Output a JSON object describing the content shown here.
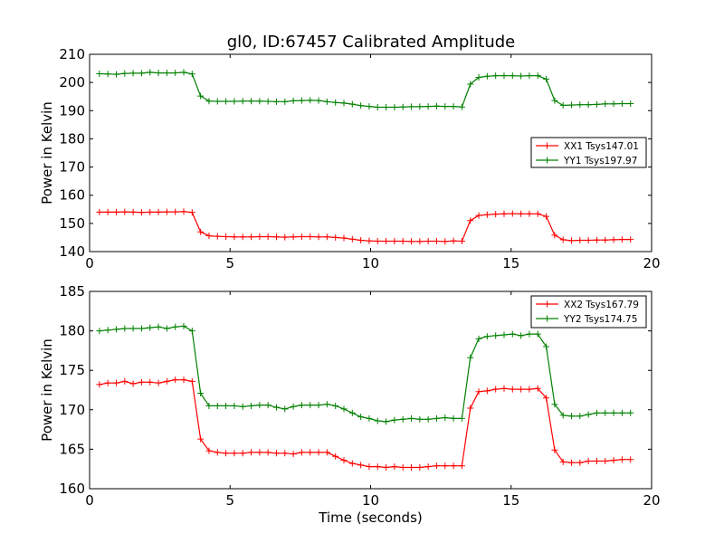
{
  "figure_title": "gl0, ID:67457 Calibrated Amplitude",
  "colors": {
    "red": "#ff0000",
    "green": "#008000",
    "axis": "#000000"
  },
  "chart_data": [
    {
      "type": "line",
      "title": "gl0, ID:67457 Calibrated Amplitude",
      "xlabel": "",
      "ylabel": "Power in Kelvin",
      "xlim": [
        0,
        20
      ],
      "ylim": [
        140,
        210
      ],
      "xticks": [
        0,
        5,
        10,
        15,
        20
      ],
      "yticks": [
        140,
        150,
        160,
        170,
        180,
        190,
        200,
        210
      ],
      "legend_position": "center-right",
      "x": [
        0.35,
        0.65,
        0.95,
        1.25,
        1.55,
        1.85,
        2.15,
        2.45,
        2.75,
        3.05,
        3.35,
        3.65,
        3.95,
        4.25,
        4.55,
        4.85,
        5.15,
        5.45,
        5.75,
        6.05,
        6.35,
        6.65,
        6.95,
        7.25,
        7.55,
        7.85,
        8.15,
        8.45,
        8.75,
        9.05,
        9.35,
        9.65,
        9.95,
        10.25,
        10.55,
        10.85,
        11.15,
        11.45,
        11.75,
        12.05,
        12.35,
        12.65,
        12.95,
        13.25,
        13.55,
        13.85,
        14.15,
        14.45,
        14.75,
        15.05,
        15.35,
        15.65,
        15.95,
        16.25,
        16.55,
        16.85,
        17.15,
        17.45,
        17.75,
        18.05,
        18.35,
        18.65,
        18.95,
        19.25
      ],
      "series": [
        {
          "name": "XX1 Tsys147.01",
          "color": "#ff0000",
          "values": [
            154,
            154,
            154,
            154.1,
            154,
            153.9,
            154,
            154,
            154.1,
            154.1,
            154.2,
            153.9,
            147,
            145.6,
            145.4,
            145.3,
            145.2,
            145.2,
            145.2,
            145.3,
            145.3,
            145.2,
            145.1,
            145.2,
            145.3,
            145.3,
            145.2,
            145.2,
            145,
            144.8,
            144.4,
            144,
            143.8,
            143.7,
            143.7,
            143.7,
            143.7,
            143.6,
            143.6,
            143.7,
            143.7,
            143.6,
            143.8,
            143.7,
            151,
            152.8,
            153.1,
            153.3,
            153.4,
            153.5,
            153.4,
            153.4,
            153.4,
            152.5,
            145.8,
            144.2,
            143.9,
            144,
            144,
            144.1,
            144.1,
            144.2,
            144.3,
            144.3
          ]
        },
        {
          "name": "YY1 Tsys197.97",
          "color": "#008000",
          "values": [
            203.1,
            203,
            202.9,
            203.2,
            203.3,
            203.3,
            203.6,
            203.4,
            203.4,
            203.4,
            203.6,
            203,
            195.2,
            193.4,
            193.3,
            193.3,
            193.3,
            193.4,
            193.4,
            193.4,
            193.3,
            193.2,
            193.2,
            193.5,
            193.6,
            193.7,
            193.6,
            193.2,
            192.9,
            192.7,
            192.3,
            191.8,
            191.5,
            191.2,
            191.2,
            191.2,
            191.3,
            191.4,
            191.4,
            191.5,
            191.6,
            191.5,
            191.5,
            191.3,
            199.4,
            201.8,
            202.2,
            202.4,
            202.4,
            202.4,
            202.3,
            202.4,
            202.4,
            201.2,
            193.6,
            191.9,
            192,
            192.1,
            192.1,
            192.2,
            192.4,
            192.4,
            192.5,
            192.5
          ]
        }
      ]
    },
    {
      "type": "line",
      "title": "",
      "xlabel": "Time (seconds)",
      "ylabel": "Power in Kelvin",
      "xlim": [
        0,
        20
      ],
      "ylim": [
        160,
        185
      ],
      "xticks": [
        0,
        5,
        10,
        15,
        20
      ],
      "yticks": [
        160,
        165,
        170,
        175,
        180,
        185
      ],
      "legend_position": "top-right",
      "x": [
        0.35,
        0.65,
        0.95,
        1.25,
        1.55,
        1.85,
        2.15,
        2.45,
        2.75,
        3.05,
        3.35,
        3.65,
        3.95,
        4.25,
        4.55,
        4.85,
        5.15,
        5.45,
        5.75,
        6.05,
        6.35,
        6.65,
        6.95,
        7.25,
        7.55,
        7.85,
        8.15,
        8.45,
        8.75,
        9.05,
        9.35,
        9.65,
        9.95,
        10.25,
        10.55,
        10.85,
        11.15,
        11.45,
        11.75,
        12.05,
        12.35,
        12.65,
        12.95,
        13.25,
        13.55,
        13.85,
        14.15,
        14.45,
        14.75,
        15.05,
        15.35,
        15.65,
        15.95,
        16.25,
        16.55,
        16.85,
        17.15,
        17.45,
        17.75,
        18.05,
        18.35,
        18.65,
        18.95,
        19.25
      ],
      "series": [
        {
          "name": "XX2 Tsys167.79",
          "color": "#ff0000",
          "values": [
            173.2,
            173.4,
            173.4,
            173.6,
            173.3,
            173.5,
            173.5,
            173.4,
            173.6,
            173.8,
            173.8,
            173.6,
            166.3,
            164.8,
            164.6,
            164.5,
            164.5,
            164.5,
            164.6,
            164.6,
            164.6,
            164.5,
            164.5,
            164.4,
            164.6,
            164.6,
            164.6,
            164.6,
            164.1,
            163.6,
            163.2,
            163,
            162.8,
            162.8,
            162.7,
            162.8,
            162.7,
            162.7,
            162.7,
            162.8,
            162.9,
            162.9,
            162.9,
            162.9,
            170.2,
            172.3,
            172.4,
            172.6,
            172.7,
            172.6,
            172.6,
            172.6,
            172.7,
            171.5,
            164.9,
            163.4,
            163.3,
            163.3,
            163.5,
            163.5,
            163.5,
            163.6,
            163.7,
            163.7
          ]
        },
        {
          "name": "YY2 Tsys174.75",
          "color": "#008000",
          "values": [
            180,
            180.1,
            180.2,
            180.3,
            180.3,
            180.3,
            180.4,
            180.5,
            180.3,
            180.5,
            180.6,
            180,
            172.1,
            170.5,
            170.5,
            170.5,
            170.5,
            170.4,
            170.5,
            170.6,
            170.6,
            170.3,
            170.1,
            170.4,
            170.6,
            170.6,
            170.6,
            170.7,
            170.5,
            170.1,
            169.6,
            169.1,
            168.9,
            168.6,
            168.5,
            168.7,
            168.8,
            168.9,
            168.8,
            168.8,
            168.9,
            169,
            168.9,
            168.9,
            176.6,
            179,
            179.3,
            179.4,
            179.5,
            179.6,
            179.4,
            179.6,
            179.6,
            178,
            170.7,
            169.3,
            169.2,
            169.2,
            169.4,
            169.6,
            169.6,
            169.6,
            169.6,
            169.6
          ]
        }
      ]
    }
  ]
}
